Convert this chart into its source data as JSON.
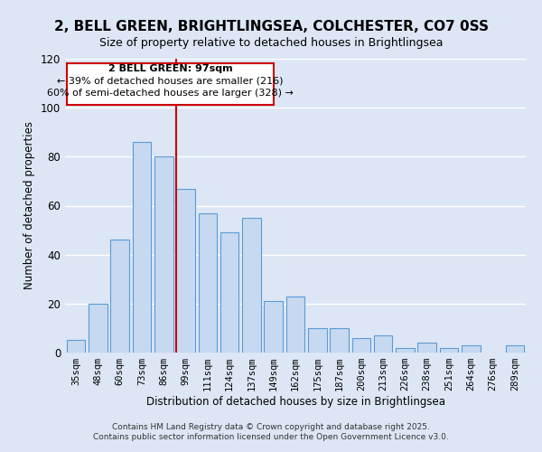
{
  "title": "2, BELL GREEN, BRIGHTLINGSEA, COLCHESTER, CO7 0SS",
  "subtitle": "Size of property relative to detached houses in Brightlingsea",
  "xlabel": "Distribution of detached houses by size in Brightlingsea",
  "ylabel": "Number of detached properties",
  "bar_labels": [
    "35sqm",
    "48sqm",
    "60sqm",
    "73sqm",
    "86sqm",
    "99sqm",
    "111sqm",
    "124sqm",
    "137sqm",
    "149sqm",
    "162sqm",
    "175sqm",
    "187sqm",
    "200sqm",
    "213sqm",
    "226sqm",
    "238sqm",
    "251sqm",
    "264sqm",
    "276sqm",
    "289sqm"
  ],
  "bar_values": [
    5,
    20,
    46,
    86,
    80,
    67,
    57,
    49,
    55,
    21,
    23,
    10,
    10,
    6,
    7,
    2,
    4,
    2,
    3,
    0,
    3
  ],
  "bar_color": "#c6d9f1",
  "bar_edge_color": "#5b9bd5",
  "annotation_text_line1": "2 BELL GREEN: 97sqm",
  "annotation_text_line2": "← 39% of detached houses are smaller (216)",
  "annotation_text_line3": "60% of semi-detached houses are larger (328) →",
  "vline_color": "#cc0000",
  "bg_color": "#dce6f5",
  "ylim": [
    0,
    120
  ],
  "footer_line1": "Contains HM Land Registry data © Crown copyright and database right 2025.",
  "footer_line2": "Contains public sector information licensed under the Open Government Licence v3.0."
}
